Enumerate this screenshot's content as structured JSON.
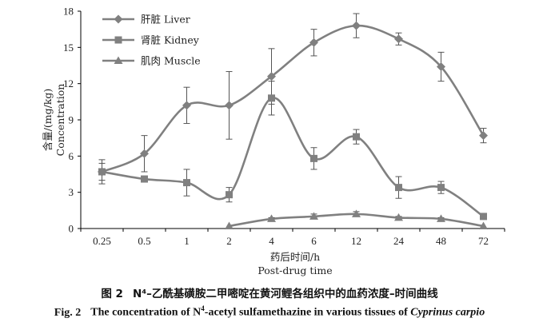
{
  "chart_data": {
    "type": "line",
    "categories": [
      "0.25",
      "0.5",
      "1",
      "2",
      "4",
      "6",
      "12",
      "24",
      "48",
      "72"
    ],
    "ylim": [
      0,
      18
    ],
    "yticks": [
      "0",
      "3",
      "6",
      "9",
      "12",
      "15",
      "18"
    ],
    "ylabel_cn": "含量/(mg/kg)",
    "ylabel_en": "Concentration",
    "xlabel_cn": "药后时间/h",
    "xlabel_en": "Post-drug time",
    "legend_position": "top-left",
    "series": [
      {
        "name": "肝脏 Liver",
        "marker": "diamond",
        "color": "#808080",
        "values": [
          4.7,
          6.2,
          10.2,
          10.2,
          12.6,
          15.4,
          16.8,
          15.7,
          13.4,
          7.7
        ],
        "errors": [
          0.7,
          1.5,
          1.5,
          2.8,
          2.3,
          1.1,
          1.0,
          0.5,
          1.2,
          0.6
        ]
      },
      {
        "name": "肾脏 Kidney",
        "marker": "square",
        "color": "#808080",
        "values": [
          4.7,
          4.1,
          3.8,
          2.8,
          10.8,
          5.8,
          7.6,
          3.4,
          3.4,
          1.0
        ],
        "errors": [
          1.0,
          0.0,
          1.1,
          0.6,
          1.4,
          0.9,
          0.6,
          0.9,
          0.5,
          0.0
        ]
      },
      {
        "name": "肌肉 Muscle",
        "marker": "triangle",
        "color": "#808080",
        "values": [
          null,
          null,
          null,
          0.2,
          0.8,
          1.0,
          1.2,
          0.9,
          0.8,
          0.2
        ],
        "errors": [
          0,
          0,
          0,
          0,
          0.1,
          0.2,
          0.2,
          0.1,
          0.1,
          0
        ]
      }
    ]
  },
  "caption": {
    "cn_label": "图 2",
    "cn_text": "N⁴–乙酰基磺胺二甲嘧啶在黄河鲤各组织中的血药浓度–时间曲线",
    "en_label": "Fig. 2",
    "en_text_pre": "The concentration of N",
    "en_sup": "4",
    "en_text_mid": "-acetyl sulfamethazine in various tissues of ",
    "en_text_italic": "Cyprinus carpio"
  }
}
